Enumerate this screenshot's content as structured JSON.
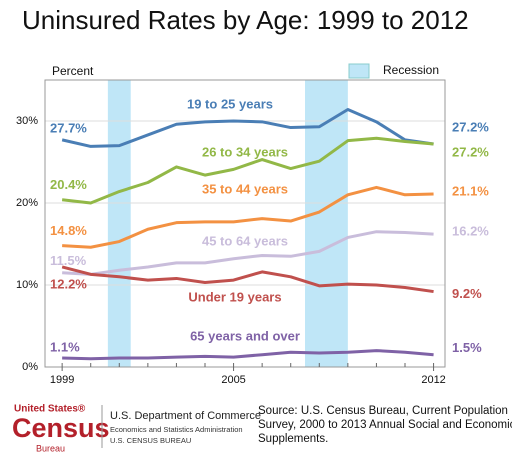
{
  "chart_data": {
    "type": "line",
    "title": "Uninsured Rates by Age: 1999 to 2012",
    "y_label": "Percent",
    "x": [
      1999,
      2000,
      2001,
      2002,
      2003,
      2004,
      2005,
      2006,
      2007,
      2008,
      2009,
      2010,
      2011,
      2012
    ],
    "xlim": [
      1998.4,
      2012.4
    ],
    "xticks": [
      1999,
      2005,
      2012
    ],
    "ylim": [
      0,
      35
    ],
    "yticks": [
      {
        "value": 0,
        "label": "0%"
      },
      {
        "value": 10,
        "label": "10%"
      },
      {
        "value": 20,
        "label": "20%"
      },
      {
        "value": 30,
        "label": "30%"
      }
    ],
    "grid": true,
    "recession": {
      "name": "Recession",
      "color": "#bfe6f7",
      "periods": [
        [
          2000.6,
          2001.4
        ],
        [
          2007.5,
          2009.0
        ]
      ]
    },
    "series": [
      {
        "name": "19 to 25 years",
        "color": "#4a7eb5",
        "values": [
          27.7,
          26.9,
          27.0,
          28.3,
          29.6,
          29.9,
          30.0,
          29.9,
          29.2,
          29.3,
          31.4,
          29.9,
          27.7,
          27.2
        ],
        "value_labels": [
          "27.7%",
          null,
          null,
          null,
          null,
          null,
          null,
          null,
          null,
          null,
          null,
          null,
          null,
          "27.2%"
        ]
      },
      {
        "name": "26 to 34 years",
        "color": "#92b847",
        "values": [
          20.4,
          20.0,
          21.4,
          22.5,
          24.4,
          23.4,
          24.1,
          25.3,
          24.2,
          25.1,
          27.6,
          27.9,
          27.5,
          27.2
        ],
        "value_labels": [
          "20.4%",
          null,
          null,
          null,
          null,
          null,
          null,
          null,
          null,
          null,
          null,
          null,
          null,
          "27.2%"
        ]
      },
      {
        "name": "35 to 44 years",
        "color": "#f39142",
        "values": [
          14.8,
          14.6,
          15.3,
          16.8,
          17.6,
          17.7,
          17.7,
          18.1,
          17.8,
          18.9,
          21.0,
          21.9,
          21.0,
          21.1
        ],
        "value_labels": [
          "14.8%",
          null,
          null,
          null,
          null,
          null,
          null,
          null,
          null,
          null,
          null,
          null,
          null,
          "21.1%"
        ]
      },
      {
        "name": "45 to 64 years",
        "color": "#c9bddb",
        "values": [
          11.5,
          11.3,
          11.8,
          12.2,
          12.7,
          12.7,
          13.2,
          13.6,
          13.5,
          14.1,
          15.8,
          16.5,
          16.4,
          16.2
        ],
        "value_labels": [
          "11.5%",
          null,
          null,
          null,
          null,
          null,
          null,
          null,
          null,
          null,
          null,
          null,
          null,
          "16.2%"
        ]
      },
      {
        "name": "Under 19 years",
        "color": "#c0504d",
        "values": [
          12.2,
          11.3,
          11.0,
          10.6,
          10.8,
          10.3,
          10.6,
          11.6,
          11.0,
          9.9,
          10.1,
          10.0,
          9.7,
          9.2
        ],
        "value_labels": [
          "12.2%",
          null,
          null,
          null,
          null,
          null,
          null,
          null,
          null,
          null,
          null,
          null,
          null,
          "9.2%"
        ]
      },
      {
        "name": "65 years and over",
        "color": "#7f62a6",
        "values": [
          1.1,
          1.0,
          1.1,
          1.1,
          1.2,
          1.3,
          1.2,
          1.5,
          1.8,
          1.7,
          1.8,
          2.0,
          1.8,
          1.5
        ],
        "value_labels": [
          "1.1%",
          null,
          null,
          null,
          null,
          null,
          null,
          null,
          null,
          null,
          null,
          null,
          null,
          "1.5%"
        ]
      }
    ],
    "source": [
      "Source: U.S. Census Bureau, Current Population",
      "Survey, 2000 to 2013 Annual Social and Economic",
      "Supplements."
    ]
  },
  "footer": {
    "logo": [
      "United States®",
      "Census",
      "Bureau"
    ],
    "agency": [
      "U.S. Department of Commerce",
      "Economics and Statistics Administration",
      "U.S. CENSUS BUREAU"
    ]
  }
}
